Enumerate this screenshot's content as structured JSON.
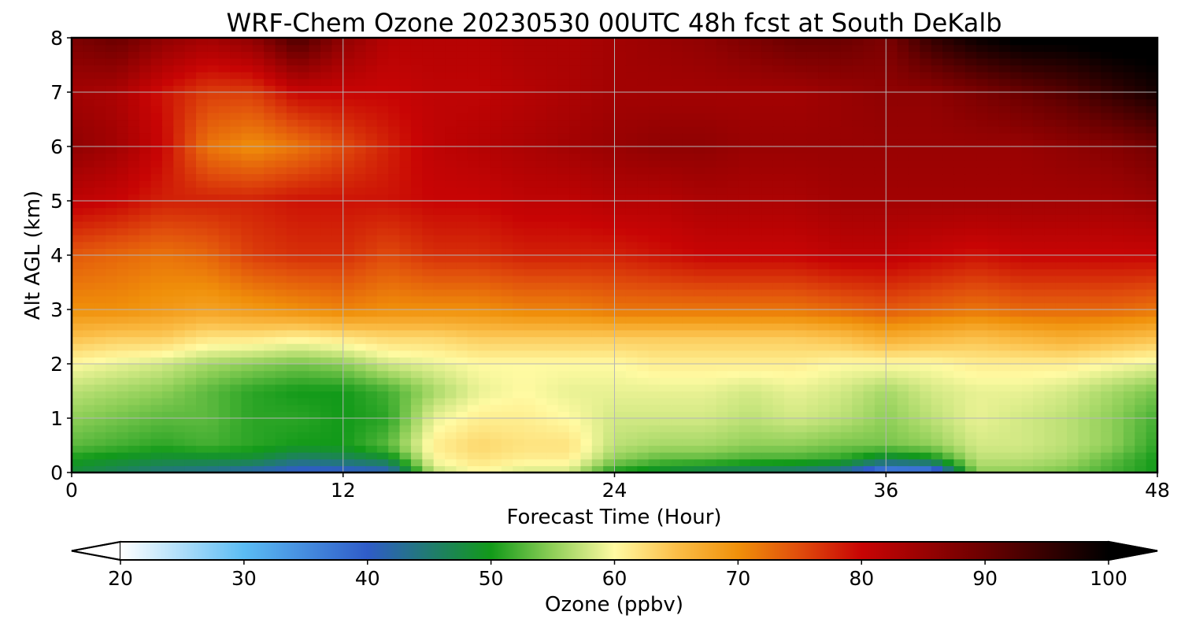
{
  "chart_data": {
    "type": "heatmap",
    "title": "WRF-Chem Ozone  20230530 00UTC 48h fcst at South DeKalb",
    "xlabel": "Forecast Time (Hour)",
    "ylabel": "Alt AGL (km)",
    "xlim": [
      0,
      48
    ],
    "ylim": [
      0,
      8
    ],
    "xticks": [
      0,
      12,
      24,
      36,
      48
    ],
    "yticks": [
      0,
      1,
      2,
      3,
      4,
      5,
      6,
      7,
      8
    ],
    "grid": true,
    "colorbar": {
      "label": "Ozone  (ppbv)",
      "min": 20,
      "max": 100,
      "ticks": [
        20,
        30,
        40,
        50,
        60,
        70,
        80,
        90,
        100
      ],
      "extend": "both",
      "stops": [
        [
          20,
          "#ffffff"
        ],
        [
          30,
          "#5bbcf4"
        ],
        [
          40,
          "#2f5cc8"
        ],
        [
          50,
          "#129a19"
        ],
        [
          55,
          "#8fcf58"
        ],
        [
          60,
          "#fffaa2"
        ],
        [
          65,
          "#fbbe48"
        ],
        [
          70,
          "#f0900a"
        ],
        [
          75,
          "#e04c0c"
        ],
        [
          80,
          "#c80404"
        ],
        [
          90,
          "#6a0000"
        ],
        [
          100,
          "#000000"
        ]
      ]
    },
    "x_hours": [
      0,
      2,
      4,
      6,
      8,
      10,
      12,
      14,
      16,
      18,
      20,
      22,
      24,
      26,
      28,
      30,
      32,
      34,
      36,
      38,
      40,
      42,
      44,
      46,
      48
    ],
    "y_km": [
      0,
      0.25,
      0.5,
      1.0,
      1.5,
      2.0,
      2.5,
      3.0,
      4.0,
      5.0,
      6.0,
      7.0,
      8.0
    ],
    "ozone_ppbv": [
      [
        48,
        46,
        44,
        43,
        41,
        39,
        39,
        40,
        57,
        60,
        58,
        58,
        50,
        48,
        46,
        45,
        44,
        42,
        34,
        34,
        55,
        55,
        54,
        52,
        50
      ],
      [
        50,
        49,
        48,
        48,
        48,
        45,
        46,
        48,
        60,
        62,
        61,
        61,
        55,
        53,
        53,
        52,
        52,
        51,
        47,
        49,
        57,
        57,
        56,
        53,
        50
      ],
      [
        53,
        52,
        51,
        52,
        51,
        50,
        50,
        53,
        61,
        63,
        62,
        62,
        57,
        56,
        56,
        55,
        55,
        54,
        54,
        55,
        58,
        58,
        57,
        55,
        51
      ],
      [
        55,
        54,
        53,
        53,
        51,
        51,
        50,
        51,
        59,
        61,
        61,
        60,
        58,
        58,
        58,
        57,
        58,
        57,
        55,
        57,
        59,
        58,
        57,
        55,
        52
      ],
      [
        57,
        56,
        55,
        53,
        51,
        50,
        50,
        52,
        56,
        59,
        60,
        59,
        59,
        59,
        59,
        58,
        59,
        58,
        56,
        58,
        59,
        59,
        58,
        56,
        54
      ],
      [
        60,
        59,
        58,
        56,
        55,
        54,
        55,
        58,
        59,
        60,
        60,
        60,
        60,
        61,
        61,
        61,
        61,
        60,
        60,
        60,
        61,
        61,
        61,
        60,
        59
      ],
      [
        65,
        64,
        64,
        62,
        62,
        61,
        62,
        63,
        63,
        64,
        64,
        64,
        64,
        64,
        64,
        64,
        64,
        65,
        67,
        66,
        65,
        66,
        67,
        66,
        65
      ],
      [
        70,
        70,
        69,
        68,
        69,
        70,
        71,
        70,
        70,
        70,
        71,
        71,
        72,
        72,
        72,
        72,
        72,
        73,
        74,
        73,
        72,
        73,
        73,
        73,
        72
      ],
      [
        74,
        73,
        72,
        73,
        76,
        77,
        77,
        75,
        77,
        77,
        78,
        78,
        78,
        79,
        80,
        80,
        80,
        81,
        81,
        80,
        79,
        80,
        80,
        80,
        80
      ],
      [
        81,
        80,
        78,
        78,
        78,
        79,
        79,
        79,
        80,
        80,
        81,
        81,
        82,
        82,
        83,
        83,
        83,
        84,
        84,
        84,
        84,
        84,
        84,
        84,
        85
      ],
      [
        86,
        84,
        80,
        72,
        70,
        72,
        75,
        78,
        81,
        82,
        83,
        84,
        85,
        86,
        86,
        85,
        85,
        85,
        85,
        85,
        85,
        85,
        86,
        87,
        89
      ],
      [
        84,
        83,
        79,
        76,
        76,
        80,
        80,
        80,
        81,
        81,
        82,
        83,
        84,
        84,
        84,
        84,
        84,
        85,
        86,
        86,
        88,
        90,
        92,
        95,
        98
      ],
      [
        88,
        90,
        86,
        84,
        86,
        93,
        86,
        82,
        82,
        82,
        83,
        83,
        84,
        85,
        86,
        88,
        90,
        90,
        88,
        95,
        99,
        101,
        101,
        102,
        102
      ]
    ]
  }
}
